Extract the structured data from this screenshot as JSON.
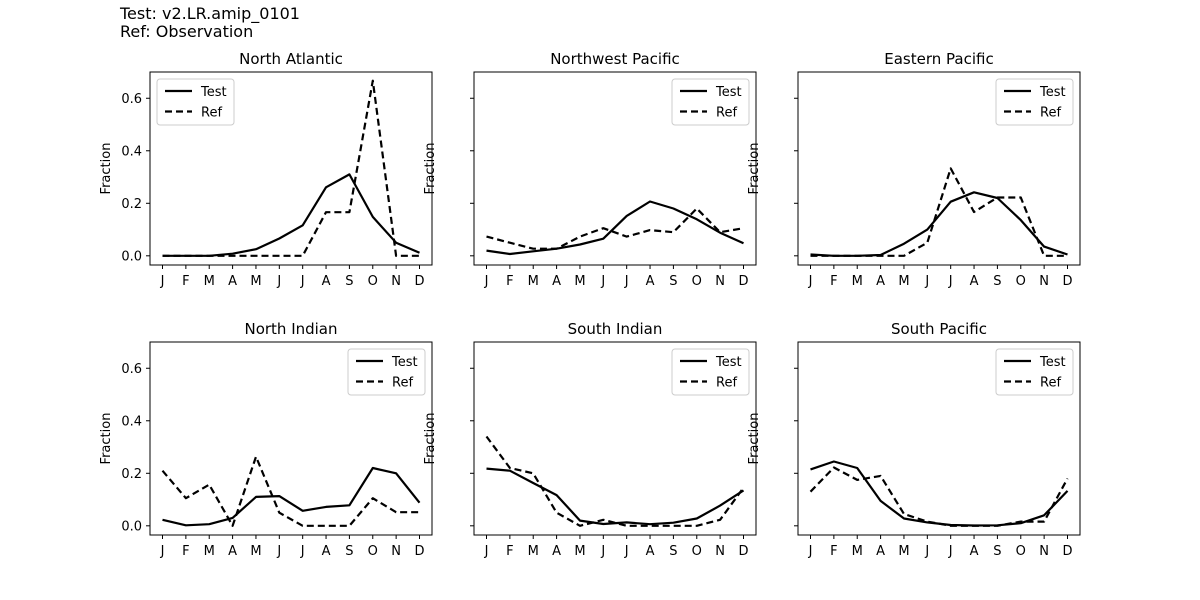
{
  "header": {
    "test_line": "Test: v2.LR.amip_0101",
    "ref_line": "Ref: Observation"
  },
  "style": {
    "line_color": "#000000",
    "frame_color": "#000000",
    "legend_border": "#cccccc",
    "background": "#ffffff"
  },
  "chart_data": [
    {
      "type": "line",
      "title": "North Atlantic",
      "ylabel": "Fraction",
      "categories": [
        "J",
        "F",
        "M",
        "A",
        "M",
        "J",
        "J",
        "A",
        "S",
        "O",
        "N",
        "D"
      ],
      "ylim": [
        -0.035,
        0.7
      ],
      "yticks": [
        "0.0",
        "0.2",
        "0.4",
        "0.6"
      ],
      "legend": "top-left",
      "series": [
        {
          "name": "Test",
          "dash": "solid",
          "values": [
            0.0,
            0.0,
            0.0,
            0.008,
            0.025,
            0.066,
            0.116,
            0.261,
            0.31,
            0.148,
            0.05,
            0.012
          ]
        },
        {
          "name": "Ref",
          "dash": "dashed",
          "values": [
            0.0,
            0.0,
            0.0,
            0.0,
            0.0,
            0.0,
            0.0,
            0.166,
            0.166,
            0.667,
            0.0,
            0.0
          ]
        }
      ]
    },
    {
      "type": "line",
      "title": "Northwest Pacific",
      "ylabel": "Fraction",
      "categories": [
        "J",
        "F",
        "M",
        "A",
        "M",
        "J",
        "J",
        "A",
        "S",
        "O",
        "N",
        "D"
      ],
      "ylim": [
        -0.035,
        0.7
      ],
      "legend": "top-right",
      "series": [
        {
          "name": "Test",
          "dash": "solid",
          "values": [
            0.02,
            0.007,
            0.017,
            0.027,
            0.043,
            0.065,
            0.152,
            0.207,
            0.18,
            0.139,
            0.088,
            0.048
          ]
        },
        {
          "name": "Ref",
          "dash": "dashed",
          "values": [
            0.073,
            0.05,
            0.027,
            0.027,
            0.073,
            0.105,
            0.073,
            0.098,
            0.09,
            0.18,
            0.09,
            0.105
          ]
        }
      ]
    },
    {
      "type": "line",
      "title": "Eastern Pacific",
      "ylabel": "Fraction",
      "categories": [
        "J",
        "F",
        "M",
        "A",
        "M",
        "J",
        "J",
        "A",
        "S",
        "O",
        "N",
        "D"
      ],
      "ylim": [
        -0.035,
        0.7
      ],
      "legend": "top-right",
      "series": [
        {
          "name": "Test",
          "dash": "solid",
          "values": [
            0.005,
            0.0,
            0.0,
            0.003,
            0.046,
            0.1,
            0.206,
            0.242,
            0.22,
            0.136,
            0.035,
            0.005
          ]
        },
        {
          "name": "Ref",
          "dash": "dashed",
          "values": [
            0.0,
            0.0,
            0.0,
            0.0,
            0.0,
            0.05,
            0.333,
            0.167,
            0.222,
            0.222,
            0.0,
            0.0
          ]
        }
      ]
    },
    {
      "type": "line",
      "title": "North Indian",
      "ylabel": "Fraction",
      "categories": [
        "J",
        "F",
        "M",
        "A",
        "M",
        "J",
        "J",
        "A",
        "S",
        "O",
        "N",
        "D"
      ],
      "ylim": [
        -0.035,
        0.7
      ],
      "yticks": [
        "0.0",
        "0.2",
        "0.4",
        "0.6"
      ],
      "legend": "top-right",
      "series": [
        {
          "name": "Test",
          "dash": "solid",
          "values": [
            0.023,
            0.002,
            0.006,
            0.03,
            0.11,
            0.113,
            0.057,
            0.072,
            0.078,
            0.22,
            0.2,
            0.088
          ]
        },
        {
          "name": "Ref",
          "dash": "dashed",
          "values": [
            0.21,
            0.105,
            0.157,
            0.0,
            0.263,
            0.05,
            0.0,
            0.0,
            0.0,
            0.105,
            0.052,
            0.052
          ]
        }
      ]
    },
    {
      "type": "line",
      "title": "South Indian",
      "ylabel": "Fraction",
      "categories": [
        "J",
        "F",
        "M",
        "A",
        "M",
        "J",
        "J",
        "A",
        "S",
        "O",
        "N",
        "D"
      ],
      "ylim": [
        -0.035,
        0.7
      ],
      "legend": "top-right",
      "series": [
        {
          "name": "Test",
          "dash": "solid",
          "values": [
            0.218,
            0.21,
            0.163,
            0.117,
            0.02,
            0.007,
            0.013,
            0.006,
            0.012,
            0.028,
            0.077,
            0.135
          ]
        },
        {
          "name": "Ref",
          "dash": "dashed",
          "values": [
            0.34,
            0.22,
            0.2,
            0.05,
            0.0,
            0.023,
            0.0,
            0.0,
            0.0,
            0.0,
            0.023,
            0.145
          ]
        }
      ]
    },
    {
      "type": "line",
      "title": "South Pacific",
      "ylabel": "Fraction",
      "categories": [
        "J",
        "F",
        "M",
        "A",
        "M",
        "J",
        "J",
        "A",
        "S",
        "O",
        "N",
        "D"
      ],
      "ylim": [
        -0.035,
        0.7
      ],
      "legend": "top-right",
      "series": [
        {
          "name": "Test",
          "dash": "solid",
          "values": [
            0.215,
            0.245,
            0.22,
            0.095,
            0.028,
            0.013,
            0.003,
            0.001,
            0.002,
            0.01,
            0.04,
            0.133
          ]
        },
        {
          "name": "Ref",
          "dash": "dashed",
          "values": [
            0.13,
            0.222,
            0.175,
            0.19,
            0.045,
            0.016,
            0.0,
            0.0,
            0.0,
            0.016,
            0.016,
            0.18
          ]
        }
      ]
    }
  ]
}
